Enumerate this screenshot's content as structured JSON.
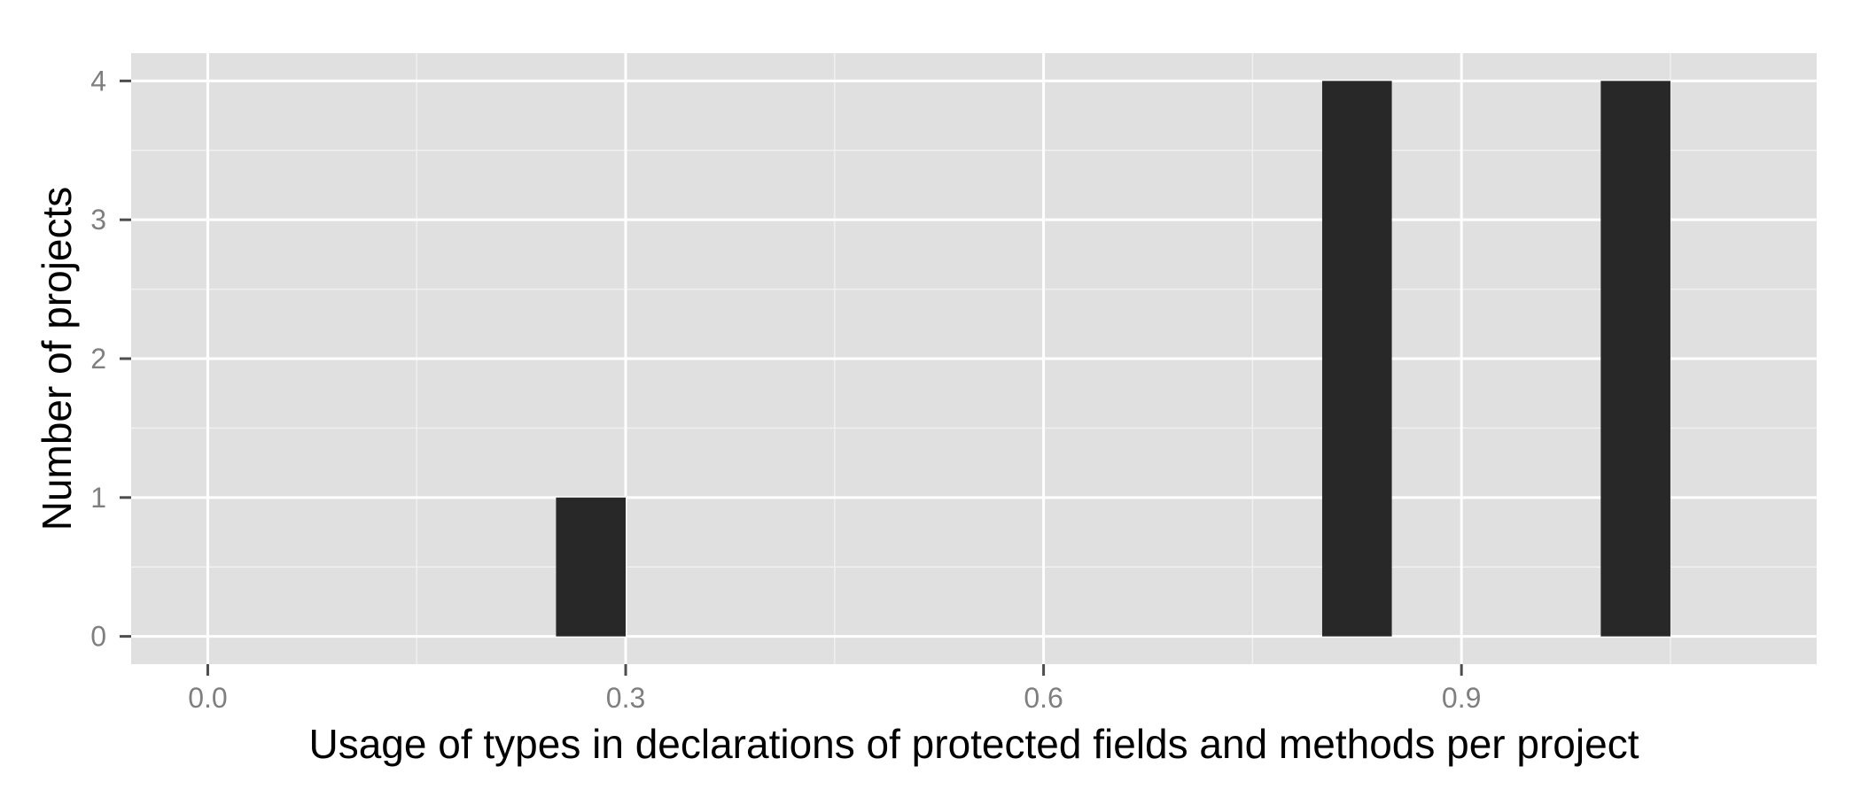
{
  "chart_data": {
    "type": "bar",
    "title": "",
    "xlabel": "Usage of types in declarations of protected fields and methods per project",
    "ylabel": "Number of projects",
    "bin_width": 0.05,
    "bins": [
      {
        "start": 0.25,
        "end": 0.3,
        "count": 1
      },
      {
        "start": 0.8,
        "end": 0.85,
        "count": 4
      },
      {
        "start": 1.0,
        "end": 1.05,
        "count": 4
      }
    ],
    "xlim": [
      -0.055,
      1.155
    ],
    "ylim": [
      -0.2,
      4.2
    ],
    "x_ticks": [
      {
        "value": 0.0,
        "label": "0.0"
      },
      {
        "value": 0.3,
        "label": "0.3"
      },
      {
        "value": 0.6,
        "label": "0.6"
      },
      {
        "value": 0.9,
        "label": "0.9"
      }
    ],
    "x_minor_ticks": [
      0.15,
      0.45,
      0.75,
      1.05
    ],
    "y_ticks": [
      {
        "value": 0,
        "label": "0"
      },
      {
        "value": 1,
        "label": "1"
      },
      {
        "value": 2,
        "label": "2"
      },
      {
        "value": 3,
        "label": "3"
      },
      {
        "value": 4,
        "label": "4"
      }
    ],
    "y_minor_ticks": [
      0.5,
      1.5,
      2.5,
      3.5
    ],
    "grid": true,
    "legend": "none",
    "colors": {
      "panel_background": "#e0e0e0",
      "grid_major": "#ffffff",
      "grid_minor": "#f0f0f0",
      "bar_fill": "#282828",
      "tick_mark": "#4d4d4d"
    }
  }
}
